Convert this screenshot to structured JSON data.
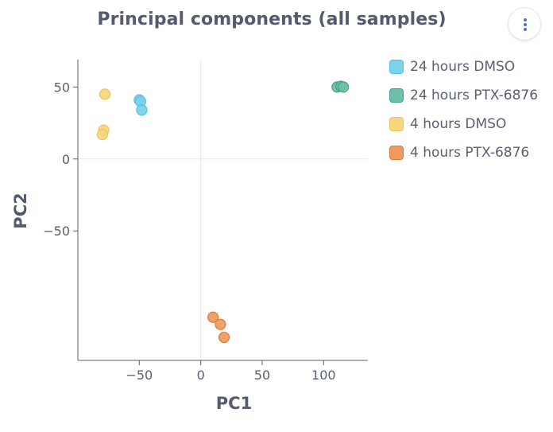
{
  "chart_data": {
    "type": "scatter",
    "title": "Principal components (all samples)",
    "xlabel": "PC1",
    "ylabel": "PC2",
    "xlim": [
      -100,
      136
    ],
    "ylim": [
      -140,
      69
    ],
    "xticks": [
      -50,
      0,
      50,
      100
    ],
    "xtick_labels": [
      "−50",
      "0",
      "50",
      "100"
    ],
    "yticks": [
      50,
      0,
      -50
    ],
    "ytick_labels": [
      "50",
      "0",
      "−50"
    ],
    "zero_lines": true,
    "legend_position": "right",
    "series": [
      {
        "name": "24 hours DMSO",
        "color": "#79d3ec",
        "border": "#57bfe0",
        "points": [
          [
            -50,
            41
          ],
          [
            -49,
            40
          ],
          [
            -48,
            34
          ]
        ]
      },
      {
        "name": "24 hours PTX-6876",
        "color": "#6cbfa8",
        "border": "#3ea386",
        "points": [
          [
            111,
            50
          ],
          [
            114,
            50.5
          ],
          [
            116,
            50
          ]
        ]
      },
      {
        "name": "4 hours DMSO",
        "color": "#f6d67e",
        "border": "#eec25a",
        "points": [
          [
            -78,
            45
          ],
          [
            -79,
            20
          ],
          [
            -80,
            17
          ]
        ]
      },
      {
        "name": "4 hours PTX-6876",
        "color": "#ef9a5c",
        "border": "#dd7a3c",
        "points": [
          [
            10,
            -110
          ],
          [
            16,
            -115
          ],
          [
            19,
            -124
          ]
        ]
      }
    ]
  }
}
